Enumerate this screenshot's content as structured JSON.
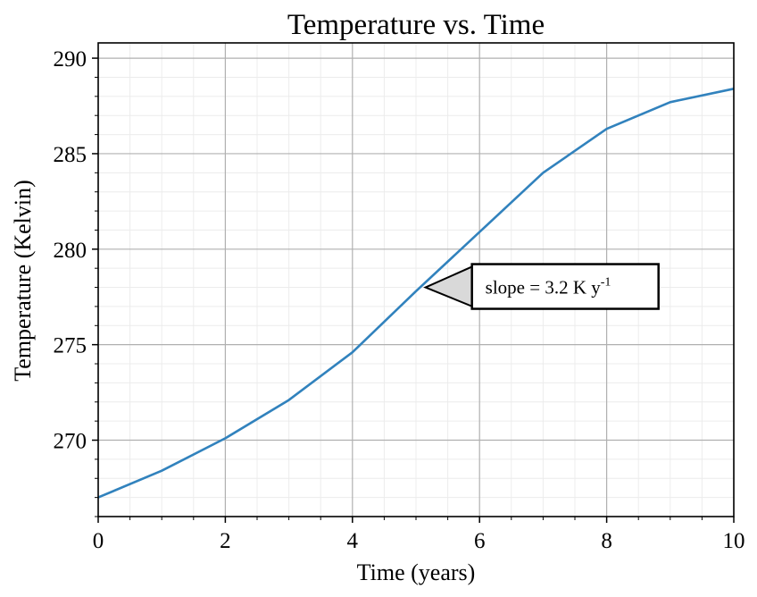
{
  "chart_data": {
    "type": "line",
    "title": "Temperature vs. Time",
    "xlabel": "Time (years)",
    "ylabel": "Temperature (Kelvin)",
    "xlim": [
      0,
      10
    ],
    "ylim": [
      266,
      290.8
    ],
    "xticks": [
      0,
      2,
      4,
      6,
      8,
      10
    ],
    "yticks": [
      270,
      275,
      280,
      285,
      290
    ],
    "grid": true,
    "minor_grid": true,
    "series": [
      {
        "color": "#3182bd",
        "x": [
          0,
          1,
          2,
          3,
          4,
          5,
          6,
          7,
          8,
          9,
          10
        ],
        "y": [
          267.0,
          268.4,
          270.1,
          272.1,
          274.6,
          277.8,
          280.9,
          284.0,
          286.3,
          287.7,
          288.4
        ]
      }
    ],
    "annotation": {
      "text": "slope = 3.2 K y",
      "superscript": "-1",
      "point": [
        5.15,
        278.0
      ]
    }
  }
}
